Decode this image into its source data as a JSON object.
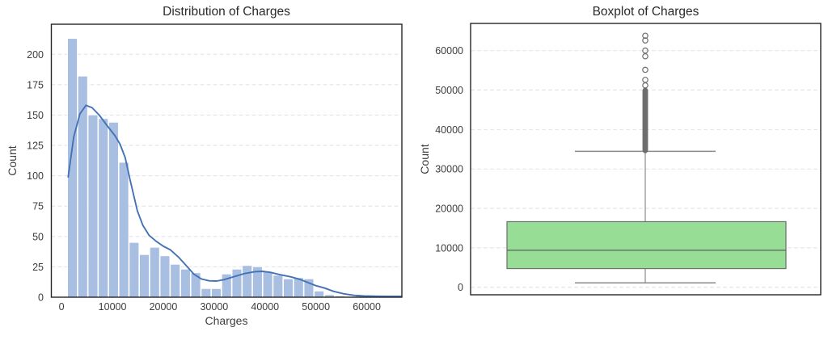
{
  "figure": {
    "background": "#ffffff"
  },
  "chart_data": [
    {
      "type": "histogram",
      "title": "Distribution of Charges",
      "xlabel": "Charges",
      "ylabel": "Count",
      "xlim": [
        -2011,
        66902
      ],
      "ylim": [
        0,
        224.8
      ],
      "xticks": [
        0,
        10000,
        20000,
        30000,
        40000,
        50000,
        60000
      ],
      "yticks": [
        0,
        25,
        50,
        75,
        100,
        125,
        150,
        175,
        200
      ],
      "grid": "horizontal-dashed",
      "legend": "none",
      "bin_start": 1121,
      "bin_width": 2021,
      "bar_counts": [
        213,
        182,
        150,
        147,
        144,
        111,
        45,
        35,
        41,
        34,
        27,
        23,
        20,
        7,
        7,
        19,
        23,
        26,
        25,
        21,
        18,
        15,
        16,
        15,
        5,
        2,
        1,
        0,
        1,
        0,
        1
      ],
      "kde_points": [
        [
          1300,
          99
        ],
        [
          2400,
          132
        ],
        [
          3600,
          151
        ],
        [
          4800,
          158
        ],
        [
          6000,
          156
        ],
        [
          7400,
          150
        ],
        [
          9000,
          141
        ],
        [
          10500,
          133
        ],
        [
          11500,
          126
        ],
        [
          12500,
          115
        ],
        [
          13500,
          96
        ],
        [
          14900,
          71
        ],
        [
          16000,
          59
        ],
        [
          17200,
          51
        ],
        [
          18600,
          46
        ],
        [
          20000,
          42
        ],
        [
          21400,
          39
        ],
        [
          23000,
          33
        ],
        [
          24500,
          26
        ],
        [
          26000,
          19
        ],
        [
          27500,
          15
        ],
        [
          29000,
          13.5
        ],
        [
          30500,
          13.3
        ],
        [
          32000,
          14.5
        ],
        [
          34000,
          17
        ],
        [
          36000,
          19.5
        ],
        [
          38000,
          21
        ],
        [
          39500,
          21.3
        ],
        [
          41000,
          20.5
        ],
        [
          43000,
          18.5
        ],
        [
          45000,
          16.8
        ],
        [
          47000,
          14.5
        ],
        [
          48500,
          12
        ],
        [
          50000,
          9.5
        ],
        [
          51700,
          7.5
        ],
        [
          53500,
          4.8
        ],
        [
          55500,
          2.8
        ],
        [
          57500,
          1.5
        ],
        [
          59500,
          1
        ],
        [
          62000,
          0.8
        ],
        [
          64500,
          0.7
        ],
        [
          66800,
          0.7
        ]
      ],
      "colors": {
        "bar_fill": "#a9bfe2",
        "bar_edge": "#ffffff",
        "kde_line": "#4472b5",
        "grid_line": "#e2e2e2",
        "plot_border": "#262626"
      }
    },
    {
      "type": "boxplot",
      "title": "Boxplot of Charges",
      "xlabel": "",
      "ylabel": "Count",
      "ylim": [
        -1900,
        66900
      ],
      "yticks": [
        0,
        10000,
        20000,
        30000,
        40000,
        50000,
        60000
      ],
      "grid": "horizontal-dashed",
      "box": {
        "q1": 4740,
        "median": 9382,
        "q3": 16640,
        "whisker_low": 1122,
        "whisker_high": 34473
      },
      "outliers_sparse": [
        51195,
        52591,
        55135,
        58571,
        60021,
        62593,
        63770
      ],
      "outliers_dense_range": [
        34600,
        50000
      ],
      "outliers_dense_count": 120,
      "colors": {
        "box_fill": "#97dd95",
        "box_edge": "#6f6f6f",
        "median_line": "#5f5f5f",
        "whisker": "#8a8a8a",
        "outlier": "#6e6e6e",
        "grid_line": "#e2e2e2",
        "plot_border": "#262626"
      }
    }
  ]
}
